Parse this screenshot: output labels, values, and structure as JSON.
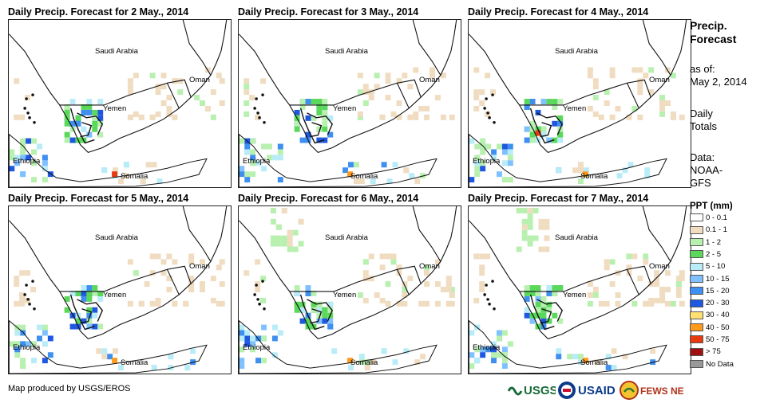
{
  "panels": [
    {
      "title": "Daily Precip. Forecast for 2 May., 2014"
    },
    {
      "title": "Daily Precip. Forecast for 3 May., 2014"
    },
    {
      "title": "Daily Precip. Forecast for 4 May., 2014"
    },
    {
      "title": "Daily Precip. Forecast for 5 May., 2014"
    },
    {
      "title": "Daily Precip. Forecast for 6 May., 2014"
    },
    {
      "title": "Daily Precip. Forecast for 7 May., 2014"
    }
  ],
  "map_labels": {
    "saudi_arabia": "Saudi Arabia",
    "oman": "Oman",
    "yemen": "Yemen",
    "ethiopia": "Ethiopia",
    "somalia": "Somalia"
  },
  "sidebar": {
    "title_line1": "Precip.",
    "title_line2": "Forecast",
    "asof_line1": "as of:",
    "asof_line2": "May 2, 2014",
    "daily_line1": "Daily",
    "daily_line2": "Totals",
    "data_line1": "Data:",
    "data_line2": "NOAA-",
    "data_line3": "GFS"
  },
  "legend": {
    "title": "PPT (mm)",
    "items": [
      {
        "label": "0 - 0.1",
        "color": "#ffffff"
      },
      {
        "label": "0.1 - 1",
        "color": "#f0dcc0"
      },
      {
        "label": "1 - 2",
        "color": "#b8f0b0"
      },
      {
        "label": "2 - 5",
        "color": "#5ad85a"
      },
      {
        "label": "5 - 10",
        "color": "#b8ecf8"
      },
      {
        "label": "10 - 15",
        "color": "#7fc0ff"
      },
      {
        "label": "15 - 20",
        "color": "#3f8ff0"
      },
      {
        "label": "20 - 30",
        "color": "#1f58e0"
      },
      {
        "label": "30 - 40",
        "color": "#ffe070"
      },
      {
        "label": "40 - 50",
        "color": "#ff9a1a"
      },
      {
        "label": "50 - 75",
        "color": "#e83a10"
      },
      {
        "label": "> 75",
        "color": "#a01010"
      },
      {
        "label": "No Data",
        "color": "#999999"
      }
    ]
  },
  "footer": {
    "credit": "Map produced by USGS/EROS",
    "logos": {
      "usgs": "USGS",
      "usaid": "USAID",
      "fewsnet": "FEWS NET"
    }
  }
}
